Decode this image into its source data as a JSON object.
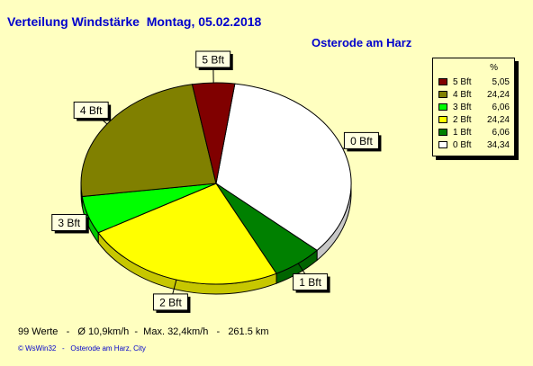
{
  "title": "Verteilung Windstärke  Montag, 05.02.2018",
  "subtitle": "Osterode am Harz",
  "legend": {
    "header": "%",
    "items": [
      {
        "label": "5 Bft",
        "value": "5,05",
        "color": "#800000"
      },
      {
        "label": "4 Bft",
        "value": "24,24",
        "color": "#808000"
      },
      {
        "label": "3 Bft",
        "value": "6,06",
        "color": "#00FF00"
      },
      {
        "label": "2 Bft",
        "value": "24,24",
        "color": "#FFFF00"
      },
      {
        "label": "1 Bft",
        "value": "6,06",
        "color": "#008000"
      },
      {
        "label": "0 Bft",
        "value": "34,34",
        "color": "#FFFFFF"
      }
    ]
  },
  "footer": "99 Werte   -   Ø 10,9km/h  -  Max. 32,4km/h   -   261.5 km",
  "credit": "© WsWin32   -   Osterode am Harz, City",
  "chart_data": {
    "type": "pie",
    "unit": "%",
    "slices": [
      {
        "label": "0 Bft",
        "value": 34.34,
        "color": "#FFFFFF"
      },
      {
        "label": "1 Bft",
        "value": 6.06,
        "color": "#008000"
      },
      {
        "label": "2 Bft",
        "value": 24.24,
        "color": "#FFFF00"
      },
      {
        "label": "3 Bft",
        "value": 6.06,
        "color": "#00FF00"
      },
      {
        "label": "4 Bft",
        "value": 24.24,
        "color": "#808000"
      },
      {
        "label": "5 Bft",
        "value": 5.05,
        "color": "#800000"
      }
    ]
  }
}
